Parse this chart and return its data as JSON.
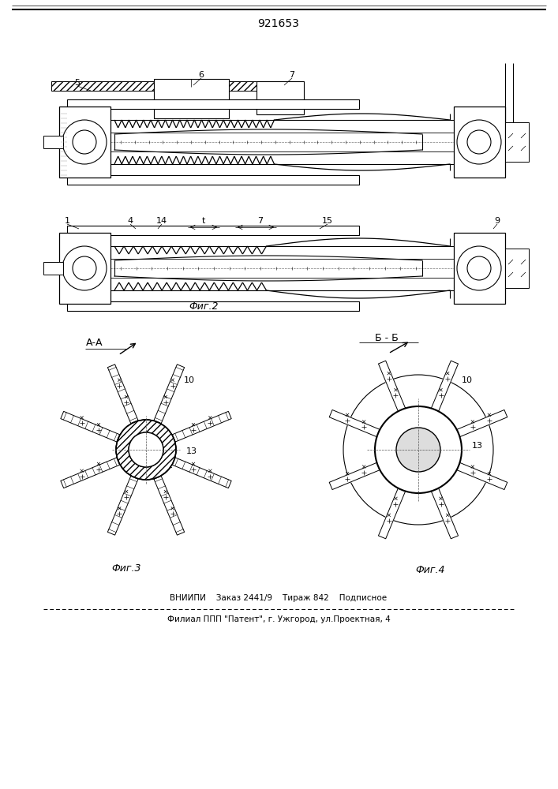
{
  "patent_number": "921653",
  "bg_color": "#ffffff",
  "line_color": "#000000",
  "fig2_label": "Фиг.2",
  "fig3_label": "Фиг.3",
  "fig4_label": "Фиг.4",
  "bb_label": "Б - Б",
  "aa_label": "А-А",
  "footer_line1": "ВНИИПИ    Заказ 2441/9    Тираж 842    Подписное",
  "footer_line2": "Филиал ППП \"Патент\", г. Ужгород, ул.Проектная, 4"
}
